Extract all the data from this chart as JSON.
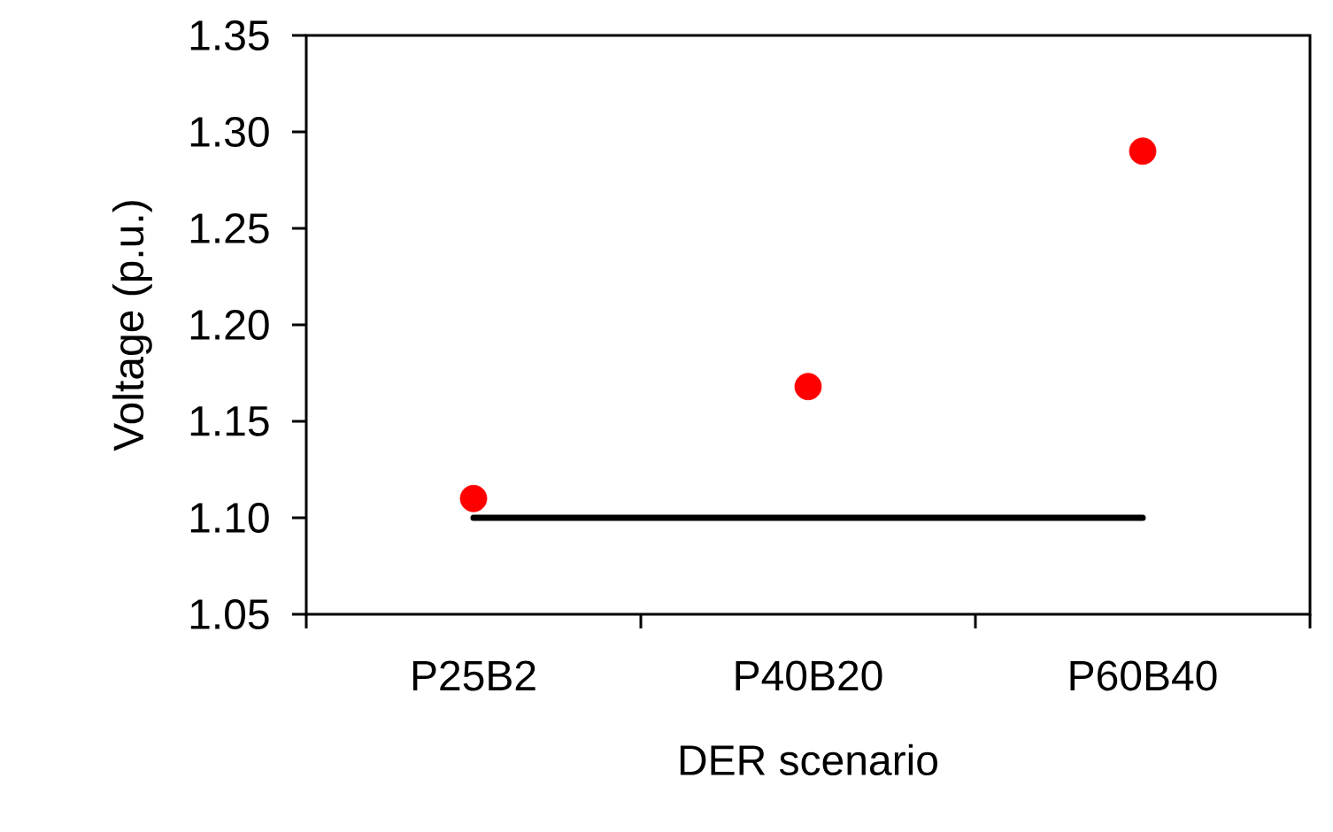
{
  "chart_data": {
    "type": "scatter",
    "xlabel": "DER scenario",
    "ylabel": "Voltage (p.u.)",
    "categories": [
      "P25B2",
      "P40B20",
      "P60B40"
    ],
    "ylim": [
      1.05,
      1.35
    ],
    "yticks": [
      1.05,
      {
        "value": 1.1,
        "label": "1.10"
      },
      1.15,
      {
        "value": 1.2,
        "label": "1.20"
      },
      1.25,
      {
        "value": 1.3,
        "label": "1.30"
      },
      1.35
    ],
    "marker": "circle",
    "series": [
      {
        "color": "#ff0000",
        "values": [
          1.11,
          1.168,
          1.29
        ]
      },
      {
        "type": "line",
        "color": "#000000",
        "marker": "none",
        "values": [
          1.1,
          1.1,
          1.1
        ]
      }
    ]
  }
}
